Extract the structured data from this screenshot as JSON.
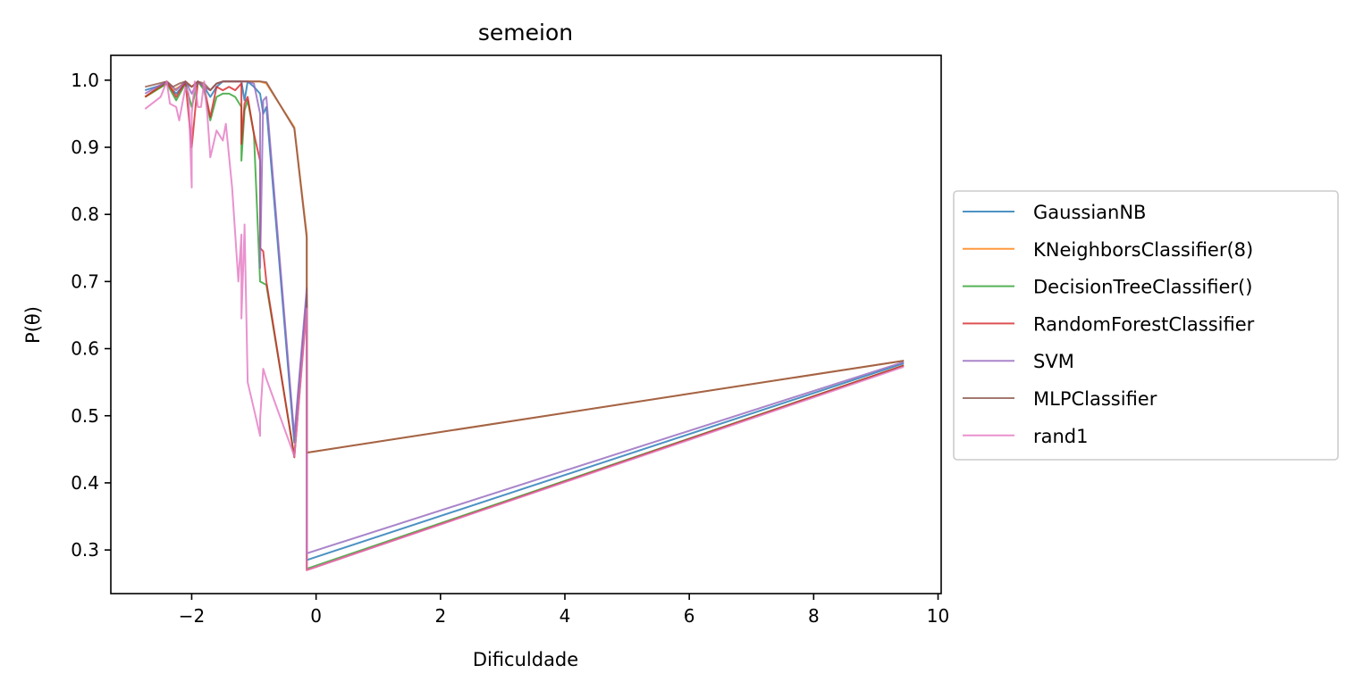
{
  "chart_data": {
    "type": "line",
    "title": "semeion",
    "xlabel": "Dificuldade",
    "ylabel": "P(θ)",
    "xlim": [
      -3.3,
      10.05
    ],
    "ylim": [
      0.235,
      1.037
    ],
    "xticks": [
      -2,
      0,
      2,
      4,
      6,
      8,
      10
    ],
    "xtick_labels": [
      "−2",
      "0",
      "2",
      "4",
      "6",
      "8",
      "10"
    ],
    "yticks": [
      0.3,
      0.4,
      0.5,
      0.6,
      0.7,
      0.8,
      0.9,
      1.0
    ],
    "ytick_labels": [
      "0.3",
      "0.4",
      "0.5",
      "0.6",
      "0.7",
      "0.8",
      "0.9",
      "1.0"
    ],
    "grid": false,
    "legend_position": "right-outside",
    "series": [
      {
        "name": "GaussianNB",
        "color": "#1f77b4",
        "x": [
          -2.75,
          -2.4,
          -2.25,
          -2.1,
          -2.0,
          -1.9,
          -1.8,
          -1.7,
          -1.6,
          -1.5,
          -1.4,
          -1.3,
          -1.2,
          -1.15,
          -1.1,
          -1.0,
          -0.9,
          -0.85,
          -0.8,
          -0.35,
          -0.15,
          -0.15,
          9.45
        ],
        "y": [
          0.985,
          0.995,
          0.98,
          0.995,
          0.99,
          0.998,
          0.99,
          0.975,
          0.99,
          0.998,
          0.998,
          0.998,
          0.998,
          0.97,
          0.998,
          0.99,
          0.98,
          0.95,
          0.96,
          0.46,
          0.68,
          0.285,
          0.578
        ]
      },
      {
        "name": "KNeighborsClassifier(8)",
        "color": "#ff7f0e",
        "x": [
          -2.75,
          -2.4,
          -2.3,
          -2.2,
          -2.1,
          -2.0,
          -1.9,
          -1.8,
          -1.7,
          -1.6,
          -1.5,
          -1.4,
          -1.3,
          -1.2,
          -1.1,
          -1.0,
          -0.9,
          -0.8,
          -0.35,
          -0.15,
          -0.15,
          9.45
        ],
        "y": [
          0.975,
          0.995,
          0.985,
          0.99,
          0.998,
          0.99,
          0.998,
          0.99,
          0.985,
          0.995,
          0.998,
          0.998,
          0.998,
          0.998,
          0.998,
          0.998,
          0.998,
          0.995,
          0.93,
          0.77,
          0.445,
          0.582
        ]
      },
      {
        "name": "DecisionTreeClassifier()",
        "color": "#2ca02c",
        "x": [
          -2.75,
          -2.4,
          -2.25,
          -2.1,
          -2.0,
          -1.9,
          -1.8,
          -1.7,
          -1.6,
          -1.5,
          -1.4,
          -1.3,
          -1.2,
          -1.2,
          -1.15,
          -1.1,
          -1.0,
          -0.9,
          -0.8,
          -0.35,
          -0.15,
          -0.15,
          9.45
        ],
        "y": [
          0.975,
          0.995,
          0.97,
          0.995,
          0.96,
          0.998,
          0.985,
          0.94,
          0.975,
          0.98,
          0.98,
          0.975,
          0.96,
          0.88,
          0.955,
          0.97,
          0.92,
          0.7,
          0.695,
          0.44,
          0.67,
          0.272,
          0.575
        ]
      },
      {
        "name": "RandomForestClassifier",
        "color": "#d62728",
        "x": [
          -2.75,
          -2.4,
          -2.25,
          -2.1,
          -2.0,
          -1.9,
          -1.8,
          -1.7,
          -1.6,
          -1.5,
          -1.4,
          -1.3,
          -1.2,
          -1.2,
          -1.15,
          -1.1,
          -1.0,
          -0.9,
          -0.9,
          -0.85,
          -0.8,
          -0.35,
          -0.15,
          -0.15,
          9.45
        ],
        "y": [
          0.975,
          0.998,
          0.975,
          0.998,
          0.9,
          0.998,
          0.99,
          0.945,
          0.99,
          0.985,
          0.99,
          0.985,
          0.995,
          0.905,
          0.965,
          0.975,
          0.92,
          0.88,
          0.75,
          0.745,
          0.7,
          0.438,
          0.665,
          0.27,
          0.575
        ]
      },
      {
        "name": "SVM",
        "color": "#9467bd",
        "x": [
          -2.75,
          -2.4,
          -2.25,
          -2.1,
          -2.0,
          -1.9,
          -1.8,
          -1.7,
          -1.6,
          -1.5,
          -1.4,
          -1.3,
          -1.2,
          -1.1,
          -1.0,
          -0.9,
          -0.9,
          -0.85,
          -0.8,
          -0.35,
          -0.15,
          -0.15,
          9.45
        ],
        "y": [
          0.98,
          0.998,
          0.985,
          0.998,
          0.98,
          0.998,
          0.99,
          0.985,
          0.995,
          0.998,
          0.998,
          0.998,
          0.998,
          0.998,
          0.995,
          0.95,
          0.72,
          0.97,
          0.975,
          0.47,
          0.69,
          0.295,
          0.58
        ]
      },
      {
        "name": "MLPClassifier",
        "color": "#8c564b",
        "x": [
          -2.75,
          -2.4,
          -2.3,
          -2.2,
          -2.1,
          -2.0,
          -1.9,
          -1.8,
          -1.7,
          -1.6,
          -1.5,
          -1.4,
          -1.3,
          -1.2,
          -1.1,
          -1.0,
          -0.9,
          -0.8,
          -0.35,
          -0.15,
          -0.15,
          9.45
        ],
        "y": [
          0.99,
          0.998,
          0.99,
          0.995,
          0.998,
          0.99,
          0.998,
          0.995,
          0.985,
          0.995,
          0.998,
          0.998,
          0.998,
          0.998,
          0.998,
          0.998,
          0.998,
          0.997,
          0.928,
          0.765,
          0.445,
          0.582
        ]
      },
      {
        "name": "rand1",
        "color": "#e377c2",
        "x": [
          -2.75,
          -2.5,
          -2.4,
          -2.35,
          -2.25,
          -2.2,
          -2.1,
          -2.05,
          -2.0,
          -2.0,
          -1.95,
          -1.9,
          -1.85,
          -1.8,
          -1.75,
          -1.7,
          -1.6,
          -1.5,
          -1.45,
          -1.35,
          -1.25,
          -1.2,
          -1.2,
          -1.15,
          -1.15,
          -1.1,
          -1.0,
          -0.9,
          -0.9,
          -0.85,
          -0.8,
          -0.35,
          -0.15,
          -0.15,
          9.45
        ],
        "y": [
          0.957,
          0.975,
          0.998,
          0.965,
          0.96,
          0.94,
          0.99,
          0.98,
          0.84,
          0.95,
          0.998,
          0.96,
          0.96,
          0.998,
          0.95,
          0.885,
          0.925,
          0.91,
          0.935,
          0.84,
          0.7,
          0.77,
          0.645,
          0.78,
          0.785,
          0.55,
          0.51,
          0.47,
          0.495,
          0.57,
          0.555,
          0.44,
          0.66,
          0.27,
          0.573
        ]
      }
    ]
  }
}
